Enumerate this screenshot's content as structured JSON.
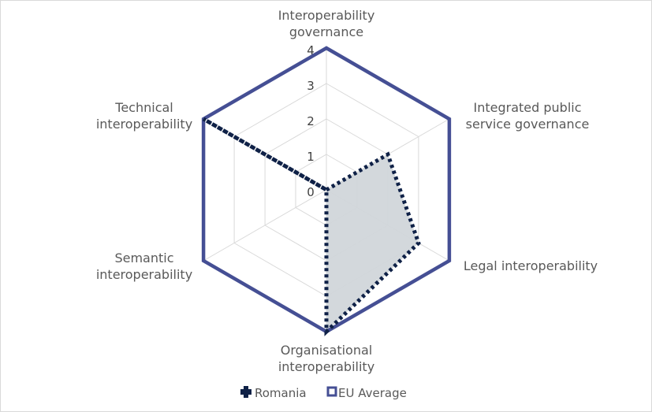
{
  "chart_data": {
    "type": "radar",
    "categories": [
      [
        "Interoperability",
        "governance"
      ],
      [
        "Integrated public",
        "service governance"
      ],
      [
        "Legal interoperability"
      ],
      [
        "Organisational",
        "interoperability"
      ],
      [
        "Semantic",
        "interoperability"
      ],
      [
        "Technical",
        "interoperability"
      ]
    ],
    "rlim": [
      0,
      4
    ],
    "ticks": [
      "0",
      "1",
      "2",
      "3",
      "4"
    ],
    "grid": true,
    "legend_position": "bottom",
    "series": [
      {
        "name": "Romania",
        "values": [
          0,
          2,
          3,
          4,
          0,
          4
        ],
        "color": "#0f2147",
        "style": "dotted",
        "fill": "#d1d6da"
      },
      {
        "name": "EU Average",
        "values": [
          4,
          4,
          4,
          4,
          4,
          4
        ],
        "color": "#454f94",
        "style": "solid"
      }
    ]
  }
}
